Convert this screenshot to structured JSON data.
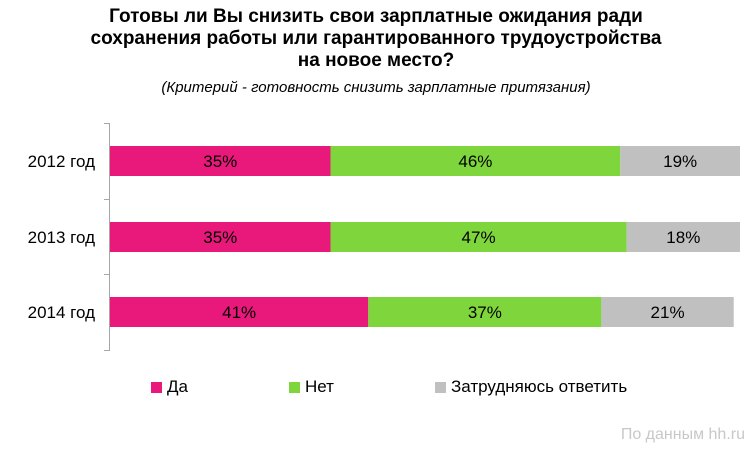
{
  "title_lines": [
    "Готовы ли Вы снизить свои зарплатные ожидания ради",
    "сохранения работы или гарантированного трудоустройства",
    "на новое место?"
  ],
  "subtitle": "(Критерий - готовность снизить зарплатные притязания)",
  "source": "По данным hh.ru",
  "colors": {
    "da": "#e8197a",
    "net": "#7ed63c",
    "hard": "#c0c0c0",
    "axis": "#a6a6a6"
  },
  "chart_data": {
    "type": "bar",
    "orientation": "horizontal",
    "stacked": true,
    "categories": [
      "2012 год",
      "2013 год",
      "2014 год"
    ],
    "series": [
      {
        "name": "Да",
        "values": [
          35,
          35,
          41
        ],
        "labels": [
          "35%",
          "35%",
          "41%"
        ],
        "color": "#e8197a"
      },
      {
        "name": "Нет",
        "values": [
          46,
          47,
          37
        ],
        "labels": [
          "46%",
          "47%",
          "37%"
        ],
        "color": "#7ed63c"
      },
      {
        "name": "Затрудняюсь ответить",
        "values": [
          19,
          18,
          21
        ],
        "labels": [
          "19%",
          "18%",
          "21%"
        ],
        "color": "#c0c0c0"
      }
    ],
    "xlim": [
      0,
      100
    ],
    "legend": "bottom",
    "grid": false
  }
}
